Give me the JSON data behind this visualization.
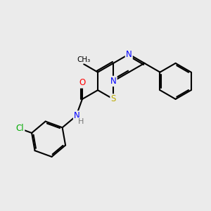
{
  "bg_color": "#ebebeb",
  "bond_color": "#000000",
  "bond_width": 1.5,
  "dbo": 0.09,
  "atom_colors": {
    "N": "#0000ff",
    "O": "#ff0000",
    "S": "#bbaa00",
    "Cl": "#00aa00",
    "H": "#777777",
    "C": "#000000"
  },
  "font_size": 8.5,
  "fig_size": [
    3.0,
    3.0
  ],
  "dpi": 100
}
